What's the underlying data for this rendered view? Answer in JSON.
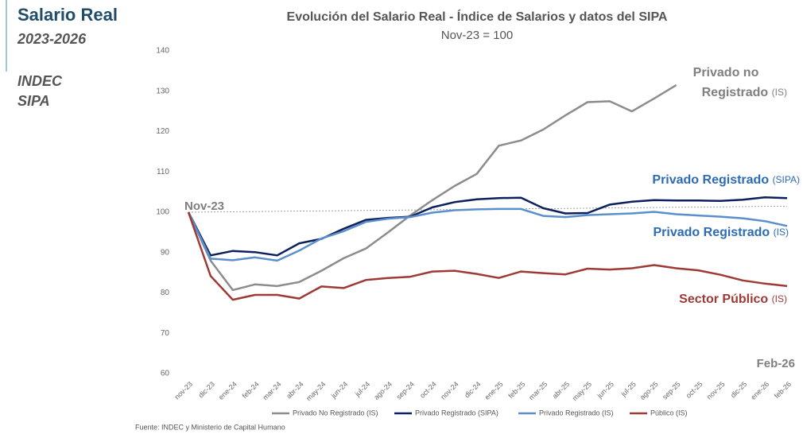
{
  "side": {
    "title": "Salario Real",
    "period": "2023-2026",
    "sources": [
      "INDEC",
      "SIPA"
    ]
  },
  "chart_data": {
    "type": "line",
    "title": "Evolución del Salario Real - Índice de Salarios y datos del SIPA",
    "subtitle": "Nov-23 = 100",
    "categories": [
      "nov-23",
      "dic-23",
      "ene-24",
      "feb-24",
      "mar-24",
      "abr-24",
      "may-24",
      "jun-24",
      "jul-24",
      "ago-24",
      "sep-24",
      "oct-24",
      "nov-24",
      "dic-24",
      "ene-25",
      "feb-25",
      "mar-25",
      "abr-25",
      "may-25",
      "jun-25",
      "jul-25",
      "ago-25",
      "sep-25",
      "oct-25",
      "nov-25",
      "dic-25",
      "ene-26",
      "feb-26"
    ],
    "series": [
      {
        "name": "Privado No Registrado (IS)",
        "color": "#8c8c8c",
        "values": [
          100,
          88,
          80.7,
          82.1,
          81.7,
          82.7,
          85.5,
          88.6,
          91,
          95,
          99.2,
          103,
          106.5,
          109.5,
          116.5,
          117.8,
          120.5,
          124,
          127.3,
          127.5,
          125,
          128.2,
          131.5,
          null,
          null,
          null,
          null,
          null
        ]
      },
      {
        "name": "Privado Registrado (SIPA)",
        "color": "#0d1f5c",
        "values": [
          100,
          89.3,
          90.4,
          90.1,
          89.3,
          92.3,
          93.4,
          95.9,
          98.1,
          98.6,
          98.9,
          101.2,
          102.5,
          103.2,
          103.5,
          103.6,
          101,
          99.7,
          99.8,
          101.9,
          102.6,
          103,
          102.9,
          102.9,
          102.8,
          103.1,
          103.7,
          103.5
        ]
      },
      {
        "name": "Privado Registrado (IS)",
        "color": "#5b8fcc",
        "values": [
          100,
          88.5,
          88.1,
          88.8,
          88,
          90.5,
          93.5,
          95.3,
          97.6,
          98.4,
          98.8,
          99.9,
          100.5,
          100.7,
          100.8,
          100.8,
          99.1,
          98.8,
          99.3,
          99.5,
          99.7,
          100.1,
          99.5,
          99.2,
          98.9,
          98.5,
          97.8,
          96.6
        ]
      },
      {
        "name": "Público (IS)",
        "color": "#9e3a35",
        "values": [
          100,
          84.2,
          78.3,
          79.5,
          79.5,
          78.6,
          81.6,
          81.2,
          83.2,
          83.7,
          84,
          85.3,
          85.5,
          84.7,
          83.7,
          85.3,
          84.9,
          84.6,
          86,
          85.8,
          86.1,
          86.9,
          86.1,
          85.6,
          84.5,
          83.1,
          82.3,
          81.7
        ]
      }
    ],
    "ylim": [
      60,
      140
    ],
    "yticks": [
      60,
      70,
      80,
      90,
      100,
      110,
      120,
      130,
      140
    ],
    "reference_line": [
      100,
      101.5
    ],
    "annotations": [
      {
        "lines": [
          "Privado no",
          "Registrado"
        ],
        "suffix": "(IS)",
        "color": "#7f7f7f"
      },
      {
        "lines": [
          "Privado Registrado"
        ],
        "suffix": "(SIPA)",
        "color": "#2e6bb5"
      },
      {
        "lines": [
          "Privado Registrado"
        ],
        "suffix": "(IS)",
        "color": "#2e6bb5"
      },
      {
        "lines": [
          "Sector Público"
        ],
        "suffix": "(IS)",
        "color": "#9e3a35"
      }
    ],
    "start_label": "Nov-23",
    "end_label": "Feb-26",
    "source": "Fuente: INDEC y Ministerio de Capital Humano"
  }
}
